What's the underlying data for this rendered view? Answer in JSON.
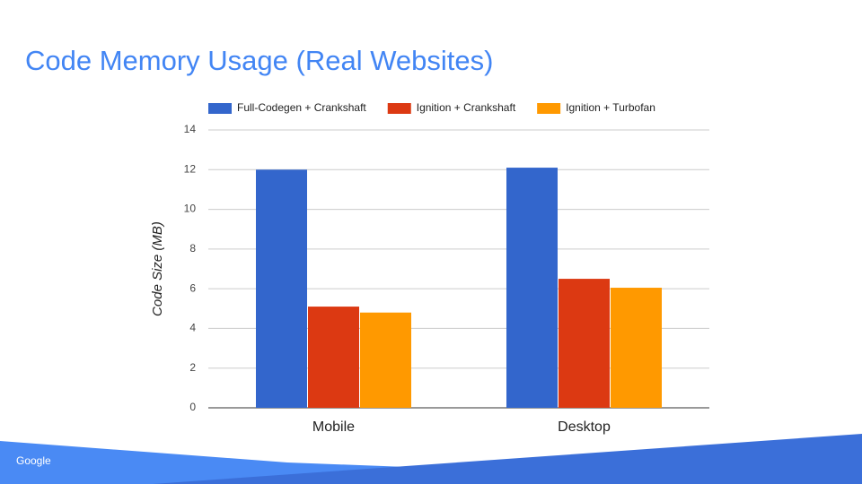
{
  "chart_data": {
    "type": "bar",
    "title": "Code Memory Usage (Real Websites)",
    "y_label": "Code Size (MB)",
    "categories": [
      "Mobile",
      "Desktop"
    ],
    "series": [
      {
        "name": "Full-Codegen + Crankshaft",
        "color": "#3366cc",
        "values": [
          12.0,
          12.1
        ]
      },
      {
        "name": "Ignition + Crankshaft",
        "color": "#dc3912",
        "values": [
          5.1,
          6.5
        ]
      },
      {
        "name": "Ignition + Turbofan",
        "color": "#ff9900",
        "values": [
          4.8,
          6.05
        ]
      }
    ],
    "ylim": [
      0,
      14
    ],
    "yticks": [
      0,
      2,
      4,
      6,
      8,
      10,
      12,
      14
    ],
    "grid": true,
    "legend": "top"
  },
  "footer": {
    "logo": "Google"
  }
}
